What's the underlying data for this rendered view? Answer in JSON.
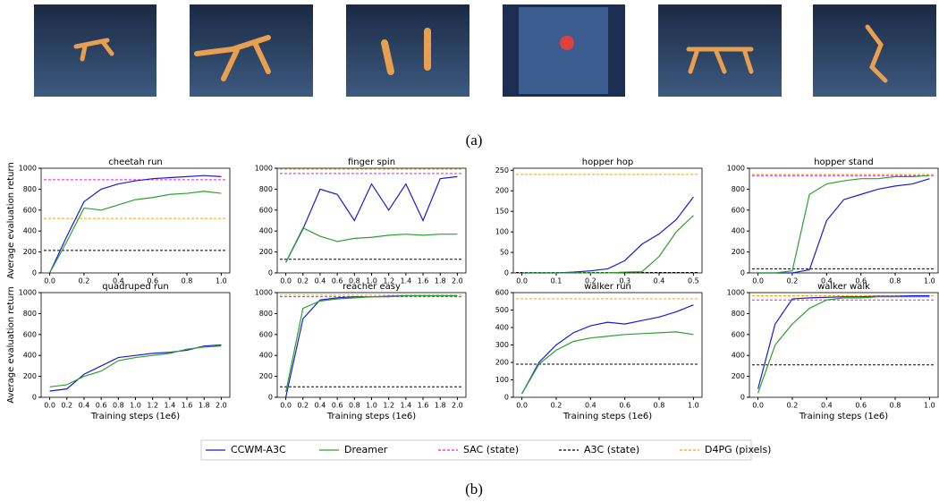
{
  "captions": [
    "(a)",
    "(b)"
  ],
  "legend": [
    {
      "name": "CCWM-A3C",
      "color": "#1a1ad6",
      "dash": false
    },
    {
      "name": "Dreamer",
      "color": "#2ca02c",
      "dash": false
    },
    {
      "name": "SAC (state)",
      "color": "#e61be6",
      "dash": true
    },
    {
      "name": "A3C (state)",
      "color": "#000000",
      "dash": true
    },
    {
      "name": "D4PG (pixels)",
      "color": "#ffa500",
      "dash": true
    }
  ],
  "chart_data": [
    {
      "type": "line",
      "title": "cheetah run",
      "ylabel": "Average evaluation return",
      "x": [
        0,
        0.1,
        0.2,
        0.3,
        0.4,
        0.5,
        0.6,
        0.7,
        0.8,
        0.9,
        1.0
      ],
      "lines": [
        [
          0,
          350,
          680,
          800,
          850,
          880,
          900,
          910,
          920,
          930,
          920
        ],
        [
          0,
          300,
          620,
          600,
          650,
          700,
          720,
          750,
          760,
          780,
          760
        ]
      ],
      "baselines": [
        890,
        215,
        520
      ],
      "xlim": [
        -0.05,
        1.05
      ],
      "ylim": [
        0,
        1000
      ],
      "xticks": [
        {
          "value": 0,
          "label": "0.0"
        },
        0.2,
        0.4,
        0.6,
        0.8,
        {
          "value": 1,
          "label": "1.0"
        }
      ],
      "yticks": [
        0,
        200,
        400,
        600,
        800,
        1000
      ]
    },
    {
      "type": "line",
      "title": "finger spin",
      "x": [
        0,
        0.2,
        0.4,
        0.6,
        0.8,
        1.0,
        1.2,
        1.4,
        1.6,
        1.8,
        2.0
      ],
      "lines": [
        [
          100,
          420,
          800,
          750,
          500,
          850,
          600,
          850,
          500,
          900,
          920
        ],
        [
          100,
          430,
          350,
          300,
          330,
          340,
          360,
          370,
          360,
          370,
          370
        ]
      ],
      "baselines": [
        950,
        130,
        990
      ],
      "xlim": [
        -0.1,
        2.1
      ],
      "ylim": [
        0,
        1000
      ],
      "xticks": [
        {
          "value": 0,
          "label": "0.0"
        },
        0.2,
        0.4,
        0.6,
        0.8,
        {
          "value": 1,
          "label": "1.0"
        },
        1.2,
        1.4,
        1.6,
        1.8,
        {
          "value": 2,
          "label": "2.0"
        }
      ],
      "yticks": [
        0,
        200,
        400,
        600,
        800,
        1000
      ]
    },
    {
      "type": "line",
      "title": "hopper hop",
      "x": [
        0,
        0.05,
        0.1,
        0.15,
        0.2,
        0.25,
        0.3,
        0.35,
        0.4,
        0.45,
        0.5
      ],
      "lines": [
        [
          0,
          0,
          0,
          2,
          5,
          10,
          30,
          70,
          95,
          130,
          185
        ],
        [
          0,
          0,
          0,
          0,
          0,
          0,
          2,
          3,
          40,
          100,
          140
        ]
      ],
      "baselines": [
        null,
        1,
        240
      ],
      "xlim": [
        -0.025,
        0.525
      ],
      "ylim": [
        0,
        255
      ],
      "xticks": [
        {
          "value": 0,
          "label": "0.0"
        },
        0.1,
        0.2,
        0.3,
        0.4,
        0.5
      ],
      "yticks": [
        0,
        50,
        100,
        150,
        200,
        250
      ]
    },
    {
      "type": "line",
      "title": "hopper stand",
      "x": [
        0,
        0.1,
        0.2,
        0.3,
        0.4,
        0.5,
        0.6,
        0.7,
        0.8,
        0.9,
        1.0
      ],
      "lines": [
        [
          0,
          0,
          0,
          30,
          500,
          700,
          750,
          800,
          830,
          850,
          900
        ],
        [
          0,
          0,
          20,
          750,
          850,
          880,
          900,
          900,
          920,
          920,
          930
        ]
      ],
      "baselines": [
        930,
        40,
        940
      ],
      "xlim": [
        -0.05,
        1.05
      ],
      "ylim": [
        0,
        1000
      ],
      "xticks": [
        {
          "value": 0,
          "label": "0.0"
        },
        0.2,
        0.4,
        0.6,
        0.8,
        {
          "value": 1,
          "label": "1.0"
        }
      ],
      "yticks": [
        0,
        200,
        400,
        600,
        800,
        1000
      ]
    },
    {
      "type": "line",
      "title": "quadruped run",
      "ylabel": "Average evaluation return",
      "xlabel": "Training steps (1e6)",
      "x": [
        0,
        0.2,
        0.4,
        0.6,
        0.8,
        1.0,
        1.2,
        1.4,
        1.6,
        1.8,
        2.0
      ],
      "lines": [
        [
          60,
          80,
          220,
          300,
          380,
          400,
          420,
          430,
          450,
          490,
          500
        ],
        [
          100,
          120,
          200,
          250,
          350,
          380,
          400,
          420,
          460,
          480,
          490
        ]
      ],
      "baselines": [
        null,
        null,
        null
      ],
      "xlim": [
        -0.1,
        2.1
      ],
      "ylim": [
        0,
        1000
      ],
      "xticks": [
        {
          "value": 0,
          "label": "0.0"
        },
        0.2,
        0.4,
        0.6,
        0.8,
        {
          "value": 1,
          "label": "1.0"
        },
        1.2,
        1.4,
        1.6,
        1.8,
        {
          "value": 2,
          "label": "2.0"
        }
      ],
      "yticks": [
        0,
        200,
        400,
        600,
        800,
        1000
      ]
    },
    {
      "type": "line",
      "title": "reacher easy",
      "xlabel": "Training steps (1e6)",
      "x": [
        0,
        0.2,
        0.4,
        0.6,
        0.8,
        1.0,
        1.2,
        1.4,
        1.6,
        1.8,
        2.0
      ],
      "lines": [
        [
          0,
          750,
          930,
          950,
          960,
          960,
          965,
          970,
          970,
          970,
          970
        ],
        [
          50,
          850,
          920,
          940,
          950,
          960,
          960,
          970,
          970,
          970,
          970
        ]
      ],
      "baselines": [
        960,
        100,
        975
      ],
      "xlim": [
        -0.1,
        2.1
      ],
      "ylim": [
        0,
        1000
      ],
      "xticks": [
        {
          "value": 0,
          "label": "0.0"
        },
        0.2,
        0.4,
        0.6,
        0.8,
        {
          "value": 1,
          "label": "1.0"
        },
        1.2,
        1.4,
        1.6,
        1.8,
        {
          "value": 2,
          "label": "2.0"
        }
      ],
      "yticks": [
        0,
        200,
        400,
        600,
        800,
        1000
      ]
    },
    {
      "type": "line",
      "title": "walker run",
      "xlabel": "Training steps (1e6)",
      "x": [
        0,
        0.1,
        0.2,
        0.3,
        0.4,
        0.5,
        0.6,
        0.7,
        0.8,
        0.9,
        1.0
      ],
      "lines": [
        [
          20,
          200,
          300,
          370,
          410,
          430,
          420,
          440,
          460,
          490,
          530
        ],
        [
          20,
          190,
          270,
          320,
          340,
          350,
          360,
          365,
          370,
          375,
          360
        ]
      ],
      "baselines": [
        null,
        190,
        565
      ],
      "xlim": [
        -0.05,
        1.05
      ],
      "ylim": [
        0,
        600
      ],
      "xticks": [
        {
          "value": 0,
          "label": "0.0"
        },
        0.2,
        0.4,
        0.6,
        0.8,
        {
          "value": 1,
          "label": "1.0"
        }
      ],
      "yticks": [
        0,
        100,
        200,
        300,
        400,
        500,
        600
      ]
    },
    {
      "type": "line",
      "title": "walker walk",
      "xlabel": "Training steps (1e6)",
      "x": [
        0,
        0.1,
        0.2,
        0.3,
        0.4,
        0.5,
        0.6,
        0.7,
        0.8,
        0.9,
        1.0
      ],
      "lines": [
        [
          80,
          700,
          940,
          950,
          955,
          960,
          960,
          965,
          965,
          970,
          970
        ],
        [
          40,
          500,
          700,
          850,
          930,
          950,
          950,
          960,
          960,
          960,
          960
        ]
      ],
      "baselines": [
        930,
        310,
        970
      ],
      "xlim": [
        -0.05,
        1.05
      ],
      "ylim": [
        0,
        1000
      ],
      "xticks": [
        {
          "value": 0,
          "label": "0.0"
        },
        0.2,
        0.4,
        0.6,
        0.8,
        {
          "value": 1,
          "label": "1.0"
        }
      ],
      "yticks": [
        0,
        200,
        400,
        600,
        800,
        1000
      ]
    }
  ]
}
